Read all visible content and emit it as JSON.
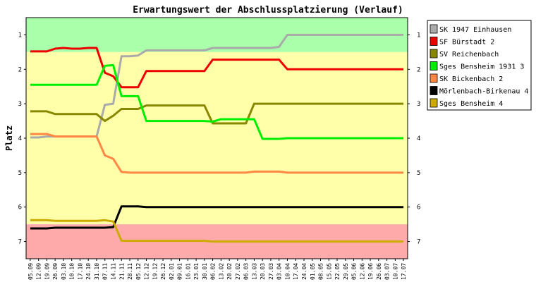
{
  "chart_data": {
    "type": "line",
    "title": "Erwartungswert der Abschlussplatzierung (Verlauf)",
    "ylabel": "Platz",
    "xlabel": "",
    "ylim": [
      0.5,
      7.5
    ],
    "y_ticks": [
      "1",
      "2",
      "3",
      "4",
      "5",
      "6",
      "7"
    ],
    "y_inverted": true,
    "grid": false,
    "bands": [
      {
        "from": 0.5,
        "to": 1.5,
        "color": "#aaffaa"
      },
      {
        "from": 1.5,
        "to": 6.5,
        "color": "#ffffaa"
      },
      {
        "from": 6.5,
        "to": 7.5,
        "color": "#ffaaaa"
      }
    ],
    "legend_position": "right",
    "x": [
      "05.09",
      "12.09",
      "19.09",
      "26.09",
      "03.10",
      "10.10",
      "17.10",
      "24.10",
      "31.10",
      "07.11",
      "14.11",
      "21.11",
      "28.11",
      "05.12",
      "12.12",
      "19.12",
      "26.12",
      "02.01",
      "09.01",
      "16.01",
      "23.01",
      "30.01",
      "06.02",
      "13.02",
      "20.02",
      "27.02",
      "06.03",
      "13.03",
      "20.03",
      "27.03",
      "03.04",
      "10.04",
      "17.04",
      "24.04",
      "01.05",
      "08.05",
      "15.05",
      "22.05",
      "29.05",
      "05.06",
      "12.06",
      "19.06",
      "26.06",
      "03.07",
      "10.07",
      "17.07"
    ],
    "series": [
      {
        "name": "SK 1947 Einhausen",
        "color": "#aaaaaa",
        "values": [
          3.98,
          3.98,
          3.95,
          3.95,
          3.95,
          3.95,
          3.95,
          3.95,
          3.95,
          3.03,
          3.0,
          1.62,
          1.62,
          1.6,
          1.45,
          1.45,
          1.45,
          1.45,
          1.45,
          1.45,
          1.45,
          1.45,
          1.38,
          1.38,
          1.38,
          1.38,
          1.38,
          1.38,
          1.38,
          1.38,
          1.35,
          1.0,
          1.0,
          1.0,
          1.0,
          1.0,
          1.0,
          1.0,
          1.0,
          1.0,
          1.0,
          1.0,
          1.0,
          1.0,
          1.0,
          1.0
        ]
      },
      {
        "name": "SF Bürstadt 2",
        "color": "#ee0000",
        "values": [
          1.48,
          1.48,
          1.48,
          1.4,
          1.38,
          1.4,
          1.4,
          1.38,
          1.38,
          2.1,
          2.2,
          2.52,
          2.52,
          2.52,
          2.05,
          2.05,
          2.05,
          2.05,
          2.05,
          2.05,
          2.05,
          2.05,
          1.72,
          1.72,
          1.72,
          1.72,
          1.72,
          1.72,
          1.72,
          1.72,
          1.72,
          2.0,
          2.0,
          2.0,
          2.0,
          2.0,
          2.0,
          2.0,
          2.0,
          2.0,
          2.0,
          2.0,
          2.0,
          2.0,
          2.0,
          2.0
        ]
      },
      {
        "name": "SV Reichenbach",
        "color": "#888800",
        "values": [
          3.22,
          3.22,
          3.22,
          3.3,
          3.3,
          3.3,
          3.3,
          3.3,
          3.3,
          3.5,
          3.35,
          3.15,
          3.15,
          3.15,
          3.05,
          3.05,
          3.05,
          3.05,
          3.05,
          3.05,
          3.05,
          3.05,
          3.57,
          3.57,
          3.57,
          3.57,
          3.57,
          3.0,
          3.0,
          3.0,
          3.0,
          3.0,
          3.0,
          3.0,
          3.0,
          3.0,
          3.0,
          3.0,
          3.0,
          3.0,
          3.0,
          3.0,
          3.0,
          3.0,
          3.0,
          3.0
        ]
      },
      {
        "name": "Sges Bensheim 1931 3",
        "color": "#00ee00",
        "values": [
          2.45,
          2.45,
          2.45,
          2.45,
          2.45,
          2.45,
          2.45,
          2.45,
          2.45,
          1.9,
          1.88,
          2.78,
          2.78,
          2.78,
          3.5,
          3.5,
          3.5,
          3.5,
          3.5,
          3.5,
          3.5,
          3.5,
          3.52,
          3.45,
          3.45,
          3.45,
          3.45,
          3.45,
          4.02,
          4.02,
          4.02,
          4.0,
          4.0,
          4.0,
          4.0,
          4.0,
          4.0,
          4.0,
          4.0,
          4.0,
          4.0,
          4.0,
          4.0,
          4.0,
          4.0,
          4.0
        ]
      },
      {
        "name": "SK Bickenbach 2",
        "color": "#ff8844",
        "values": [
          3.88,
          3.88,
          3.88,
          3.95,
          3.95,
          3.95,
          3.95,
          3.95,
          3.95,
          4.5,
          4.6,
          4.98,
          5.0,
          5.0,
          5.0,
          5.0,
          5.0,
          5.0,
          5.0,
          5.0,
          5.0,
          5.0,
          5.0,
          5.0,
          5.0,
          5.0,
          5.0,
          4.97,
          4.97,
          4.97,
          4.97,
          5.0,
          5.0,
          5.0,
          5.0,
          5.0,
          5.0,
          5.0,
          5.0,
          5.0,
          5.0,
          5.0,
          5.0,
          5.0,
          5.0,
          5.0
        ]
      },
      {
        "name": "Mörlenbach-Birkenau 4",
        "color": "#000000",
        "values": [
          6.62,
          6.62,
          6.62,
          6.6,
          6.6,
          6.6,
          6.6,
          6.6,
          6.6,
          6.6,
          6.58,
          5.98,
          5.98,
          5.98,
          6.0,
          6.0,
          6.0,
          6.0,
          6.0,
          6.0,
          6.0,
          6.0,
          6.0,
          6.0,
          6.0,
          6.0,
          6.0,
          6.0,
          6.0,
          6.0,
          6.0,
          6.0,
          6.0,
          6.0,
          6.0,
          6.0,
          6.0,
          6.0,
          6.0,
          6.0,
          6.0,
          6.0,
          6.0,
          6.0,
          6.0,
          6.0
        ]
      },
      {
        "name": "Sges Bensheim 4",
        "color": "#ccaa00",
        "values": [
          6.38,
          6.38,
          6.38,
          6.4,
          6.4,
          6.4,
          6.4,
          6.4,
          6.4,
          6.38,
          6.42,
          6.98,
          6.98,
          6.98,
          6.98,
          6.98,
          6.98,
          6.98,
          6.98,
          6.98,
          6.98,
          6.98,
          7.0,
          7.0,
          7.0,
          7.0,
          7.0,
          7.0,
          7.0,
          7.0,
          7.0,
          7.0,
          7.0,
          7.0,
          7.0,
          7.0,
          7.0,
          7.0,
          7.0,
          7.0,
          7.0,
          7.0,
          7.0,
          7.0,
          7.0,
          7.0
        ]
      }
    ]
  }
}
